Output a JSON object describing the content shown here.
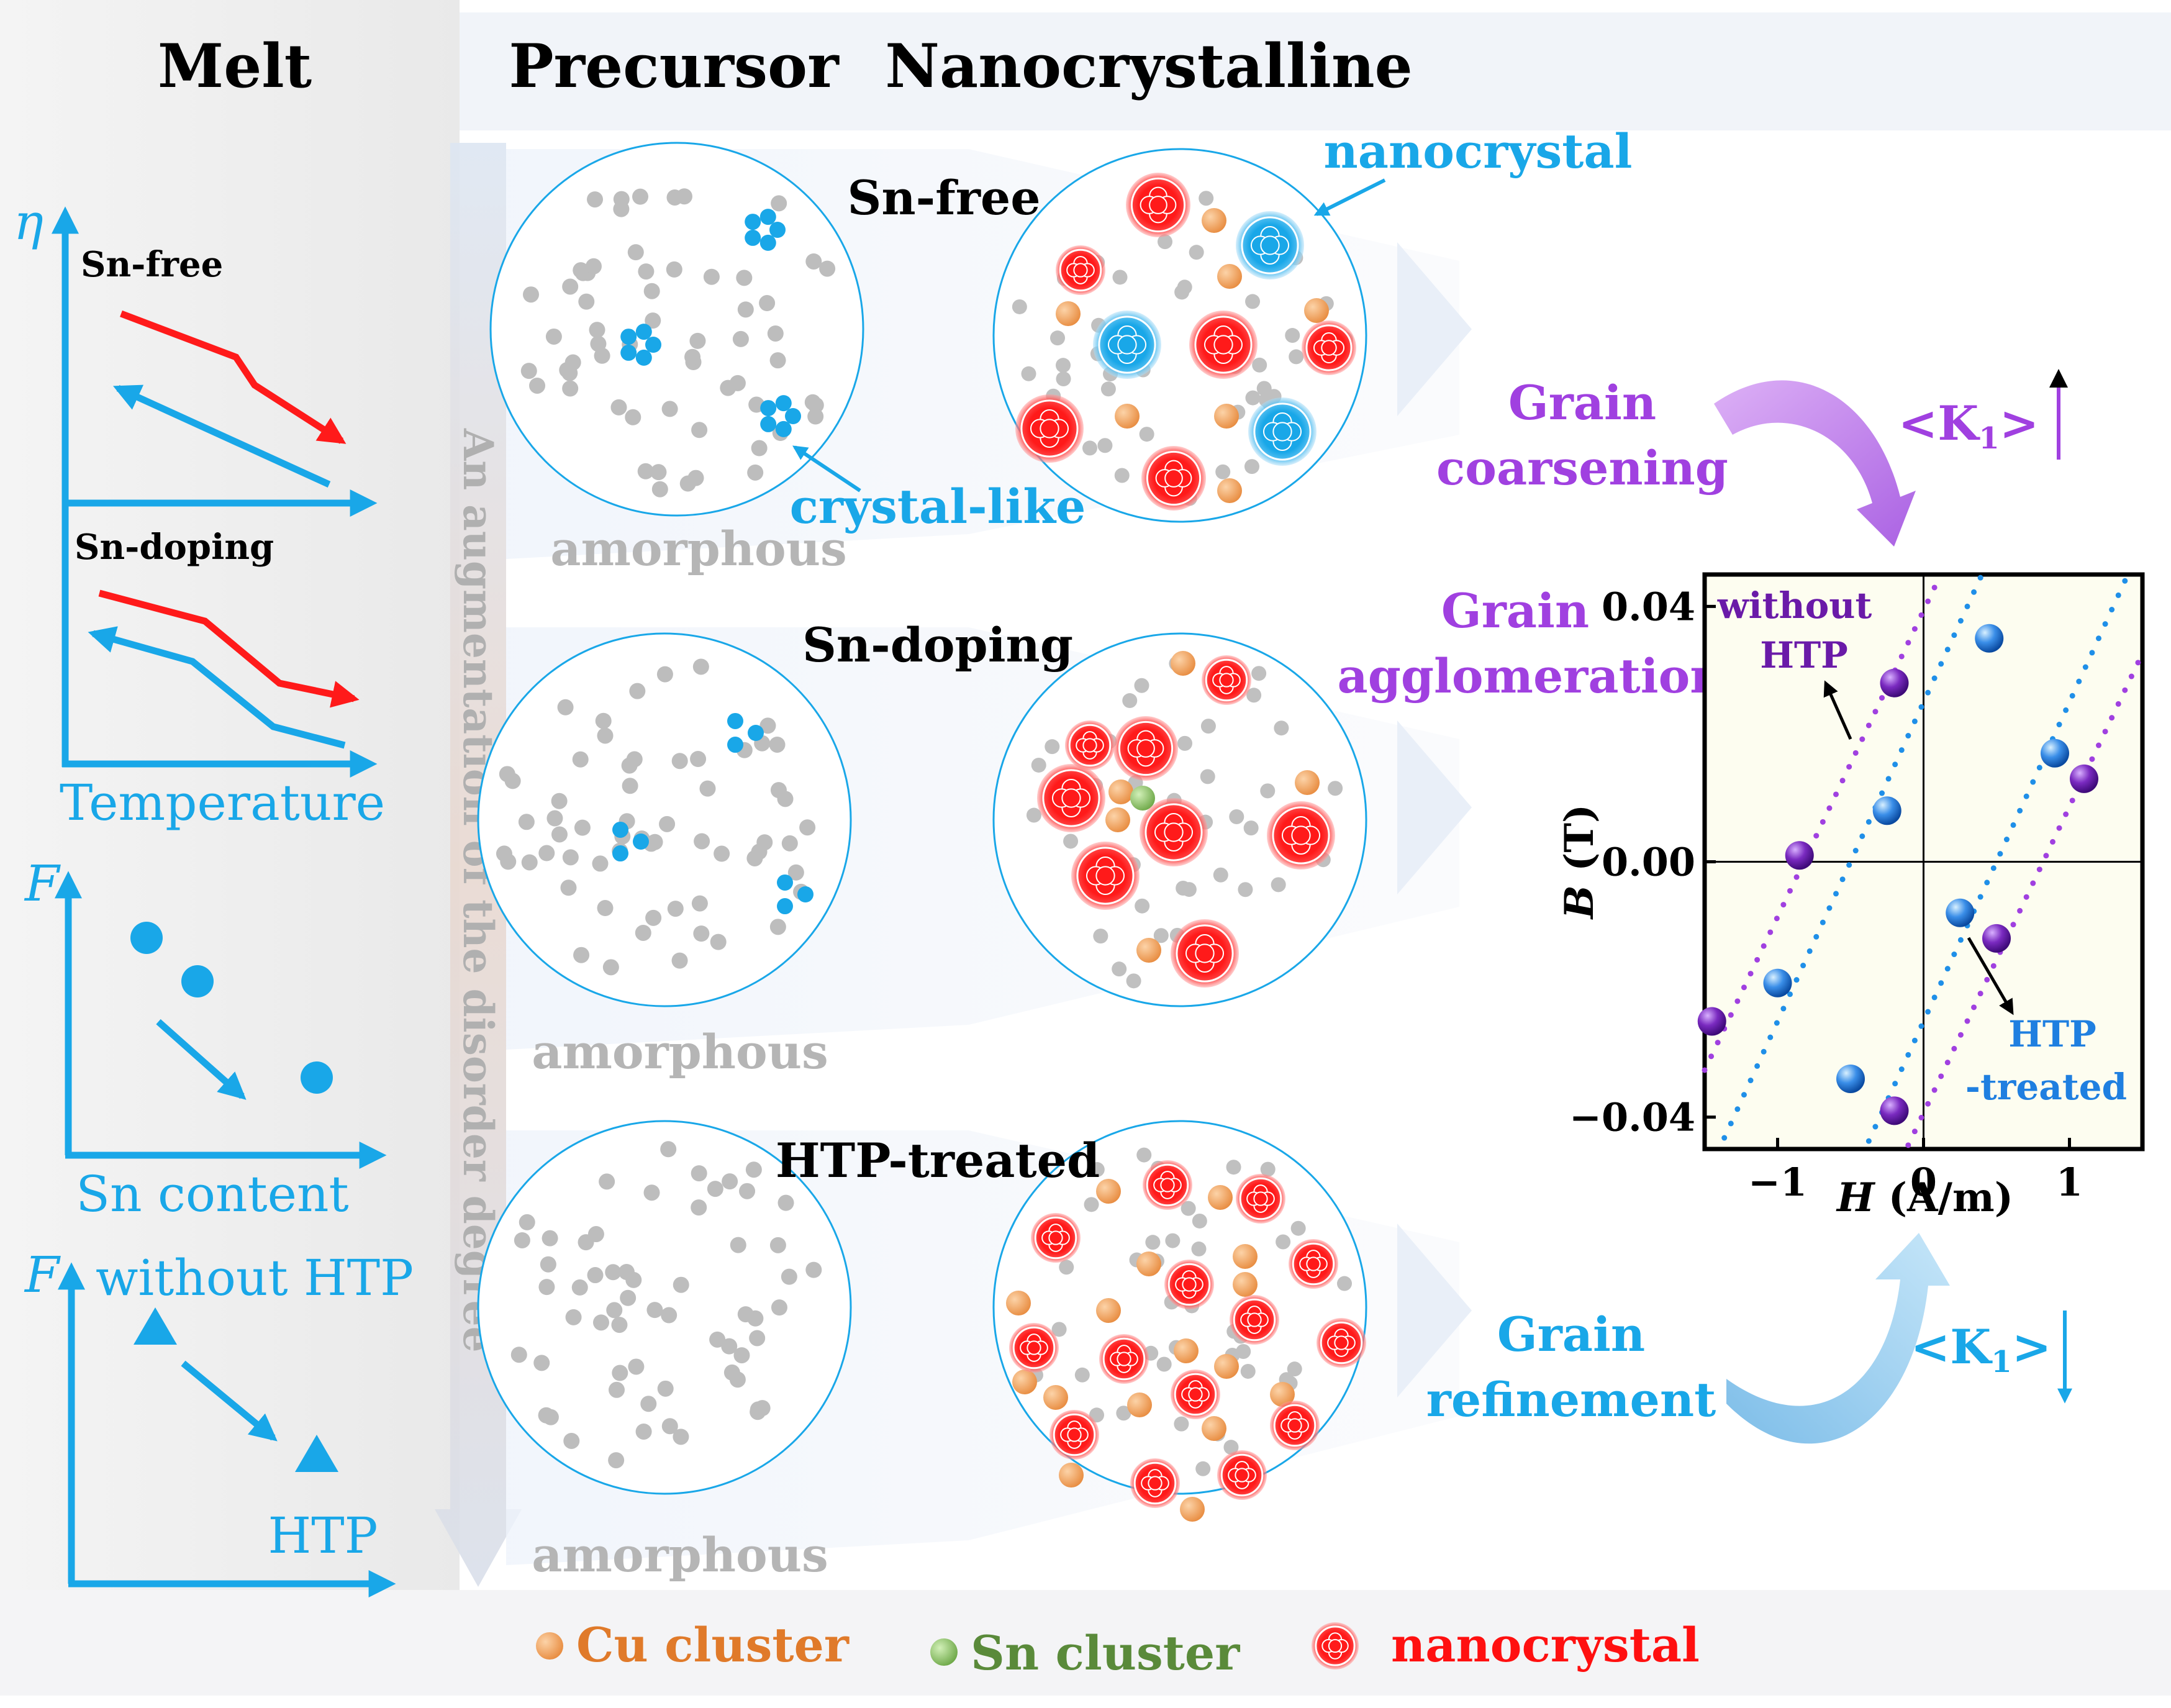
{
  "headers": {
    "melt": "Melt",
    "precursor": "Precursor",
    "nanocrystalline": "Nanocrystalline"
  },
  "melt_panels": {
    "viscosity": {
      "axis_label": "η",
      "xlabel": "Temperature",
      "curve_labels": [
        "Sn-free",
        "Sn-doping"
      ]
    },
    "sn_content": {
      "axis_label": "F",
      "xlabel": "Sn content"
    },
    "htp": {
      "axis_label": "F",
      "label_top": "without HTP",
      "label_bottom": "HTP"
    }
  },
  "disorder_arrow": {
    "label": "An augmentation of the disorder degree"
  },
  "rows": [
    {
      "name": "Sn-free",
      "precursor_label": "amorphous",
      "annotations": [
        "crystal-like",
        "nanocrystal"
      ]
    },
    {
      "name": "Sn-doping",
      "precursor_label": "amorphous"
    },
    {
      "name": "HTP-treated",
      "precursor_label": "amorphous"
    }
  ],
  "effects": {
    "coarsening": {
      "line1": "Grain",
      "line2": "coarsening",
      "k1": "<K",
      "k1_sub": "1",
      "k1_end": ">",
      "direction": "up"
    },
    "agglomeration": {
      "line1": "Grain",
      "line2": "agglomeration"
    },
    "refinement": {
      "line1": "Grain",
      "line2": "refinement",
      "k1": "<K",
      "k1_sub": "1",
      "k1_end": ">",
      "direction": "down"
    }
  },
  "legend": [
    {
      "label": "Cu cluster",
      "color": "#e07a2a"
    },
    {
      "label": "Sn cluster",
      "color": "#5a8a3a"
    },
    {
      "label": "nanocrystal",
      "color": "#ff1010"
    }
  ],
  "colors": {
    "blue": "#19a7e8",
    "red": "#ff1a1a",
    "purple": "#a040e0",
    "gray": "#b9b9b9",
    "cu": "#f0a060"
  },
  "chart_data": {
    "type": "scatter",
    "title": "",
    "xlabel": "H (A/m)",
    "ylabel": "B (T)",
    "xlim": [
      -1.5,
      1.5
    ],
    "ylim": [
      -0.045,
      0.045
    ],
    "xticks": [
      "−1",
      "0",
      "1"
    ],
    "yticks": [
      "−0.04",
      "0.00",
      "0.04"
    ],
    "series": [
      {
        "name": "without HTP",
        "label_line1": "without",
        "label_line2": "HTP",
        "color": "#6a1aa8",
        "loop": {
          "coercivity": 0.82,
          "slope": 0.048
        },
        "points": [
          [
            -1.45,
            -0.025
          ],
          [
            -0.85,
            0.001
          ],
          [
            -0.2,
            0.028
          ],
          [
            1.1,
            0.013
          ],
          [
            0.5,
            -0.012
          ],
          [
            -0.2,
            -0.039
          ]
        ]
      },
      {
        "name": "HTP-treated",
        "label_line1": "HTP",
        "label_line2": "-treated",
        "color": "#1f7fe0",
        "loop": {
          "coercivity": 0.5,
          "slope": 0.05
        },
        "points": [
          [
            -1.0,
            -0.019
          ],
          [
            -0.25,
            0.008
          ],
          [
            0.45,
            0.035
          ],
          [
            0.9,
            0.017
          ],
          [
            0.25,
            -0.008
          ],
          [
            -0.5,
            -0.034
          ]
        ]
      }
    ]
  }
}
